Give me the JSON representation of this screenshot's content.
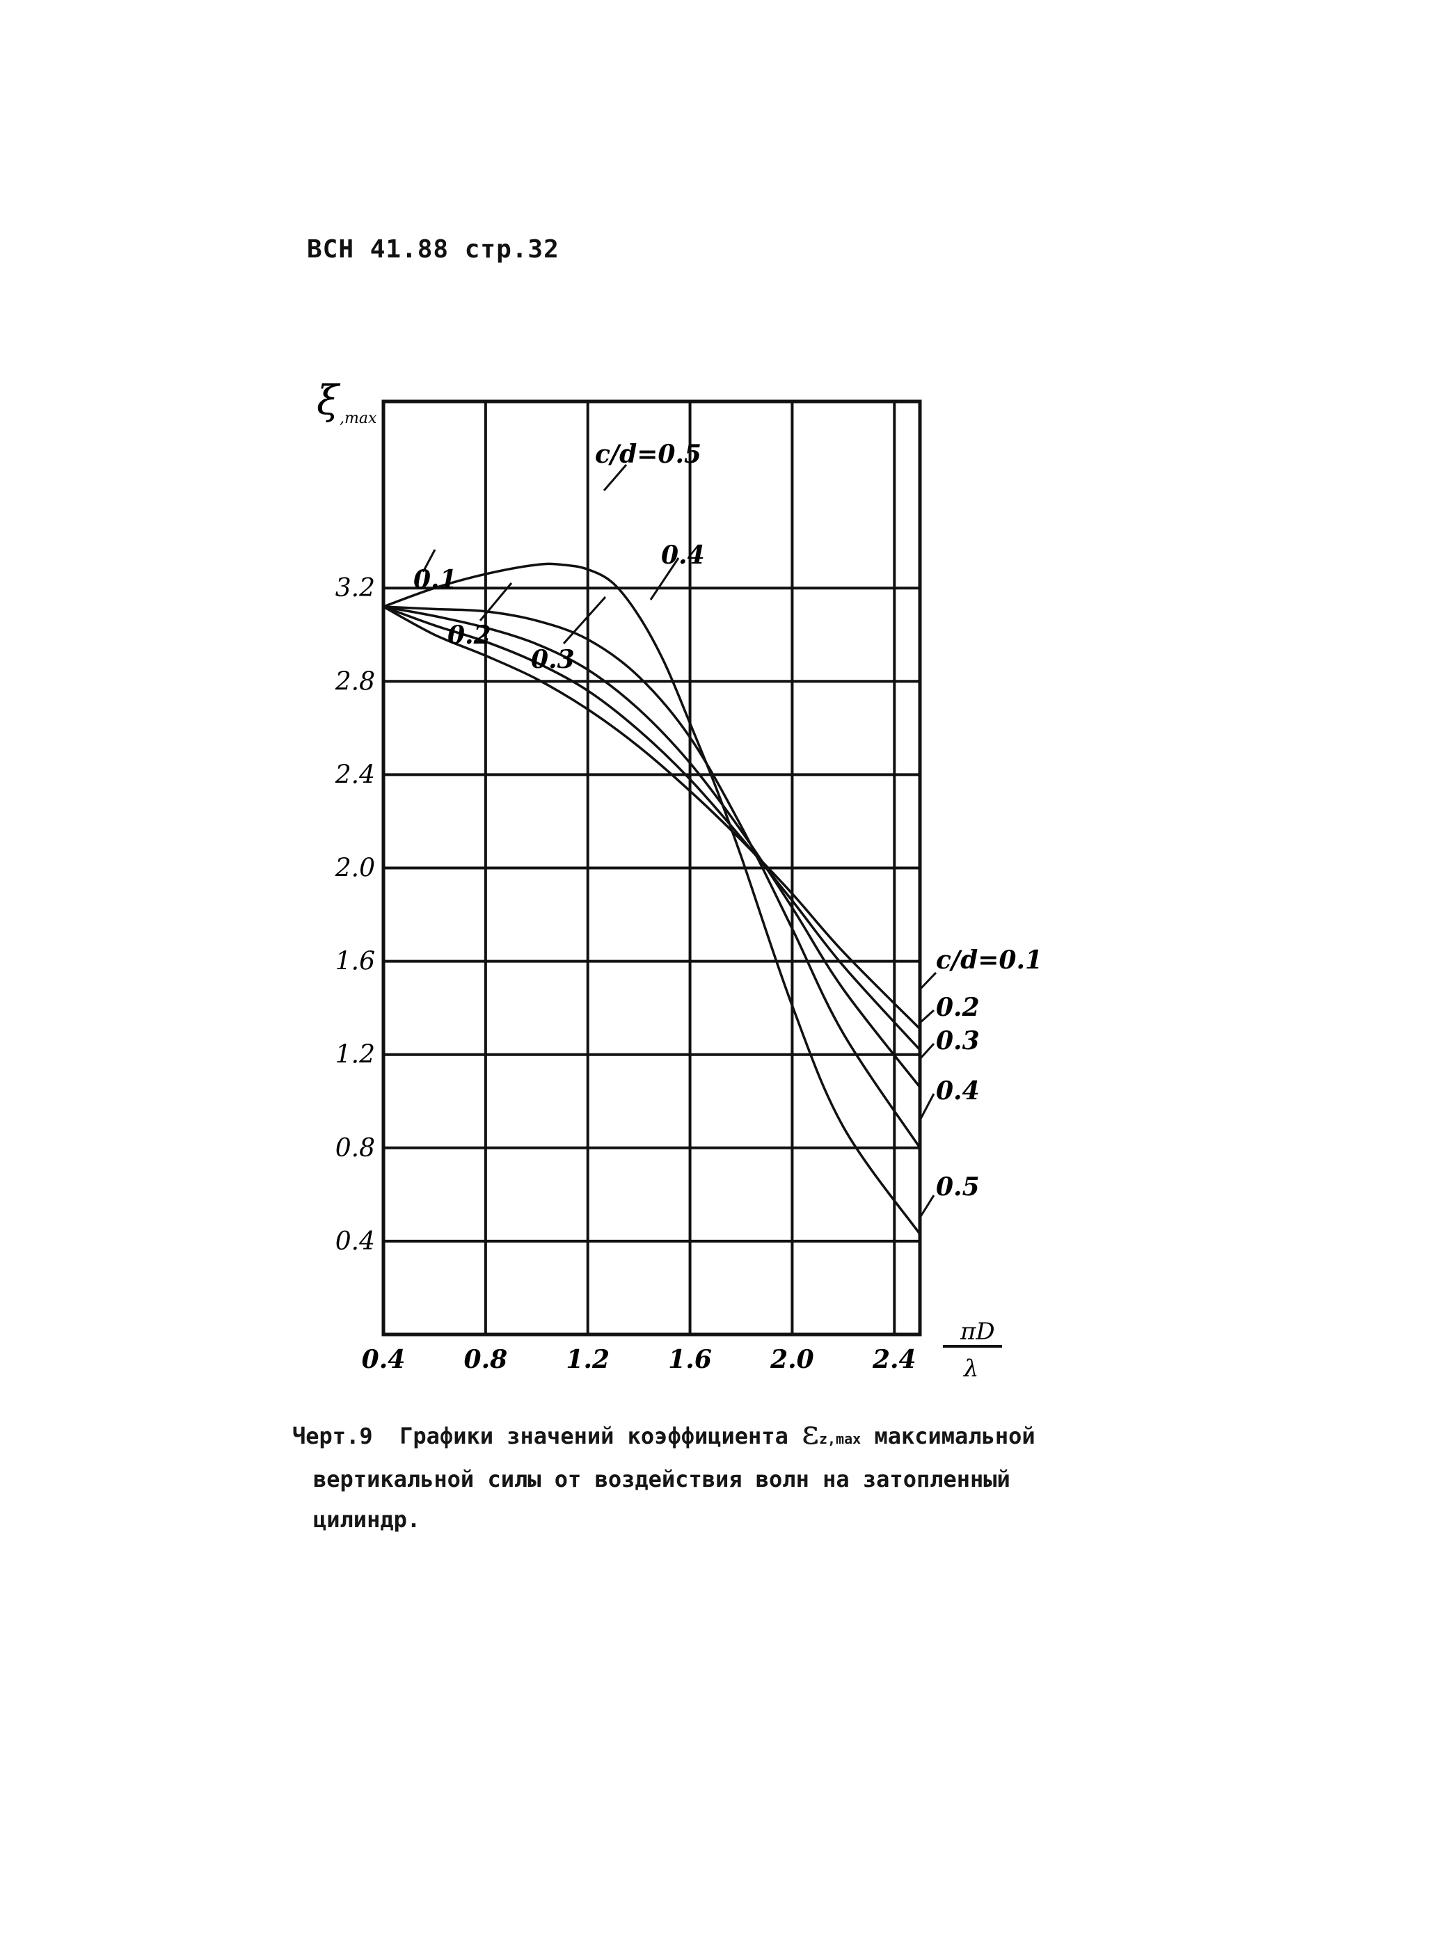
{
  "header": {
    "text": "ВСН 41.88 стр.32"
  },
  "chart_data": {
    "type": "line",
    "xlabel": {
      "num": "πD",
      "den": "λ"
    },
    "ylabel": {
      "sym": "ξ",
      "sub": ",max"
    },
    "xlim": [
      0.4,
      2.5
    ],
    "ylim": [
      0.0,
      4.0
    ],
    "xticks": [
      0.4,
      0.8,
      1.2,
      1.6,
      2.0,
      2.4
    ],
    "xtick_labels": [
      "0.4",
      "0.8",
      "1.2",
      "1.6",
      "2.0",
      "2.4"
    ],
    "yticks": [
      0.4,
      0.8,
      1.2,
      1.6,
      2.0,
      2.4,
      2.8,
      3.2
    ],
    "ytick_labels": [
      "0.4",
      "0.8",
      "1.2",
      "1.6",
      "2.0",
      "2.4",
      "2.8",
      "3.2"
    ],
    "grid": true,
    "series": [
      {
        "name": "c/d=0.1",
        "x": [
          0.4,
          0.6,
          0.8,
          1.0,
          1.2,
          1.4,
          1.6,
          1.8,
          2.0,
          2.2,
          2.5
        ],
        "y": [
          3.12,
          3.0,
          2.91,
          2.81,
          2.68,
          2.52,
          2.33,
          2.12,
          1.89,
          1.64,
          1.31
        ]
      },
      {
        "name": "c/d=0.2",
        "x": [
          0.4,
          0.6,
          0.8,
          1.0,
          1.2,
          1.4,
          1.6,
          1.8,
          2.0,
          2.2,
          2.5
        ],
        "y": [
          3.12,
          3.04,
          2.97,
          2.88,
          2.76,
          2.59,
          2.38,
          2.13,
          1.86,
          1.58,
          1.22
        ]
      },
      {
        "name": "c/d=0.3",
        "x": [
          0.4,
          0.6,
          0.8,
          1.0,
          1.2,
          1.4,
          1.6,
          1.8,
          2.0,
          2.2,
          2.5
        ],
        "y": [
          3.12,
          3.08,
          3.03,
          2.96,
          2.85,
          2.68,
          2.45,
          2.16,
          1.83,
          1.48,
          1.06
        ]
      },
      {
        "name": "c/d=0.4",
        "x": [
          0.4,
          0.6,
          0.8,
          1.0,
          1.2,
          1.4,
          1.6,
          1.8,
          2.0,
          2.2,
          2.5
        ],
        "y": [
          3.12,
          3.11,
          3.1,
          3.06,
          2.98,
          2.82,
          2.56,
          2.18,
          1.74,
          1.29,
          0.8
        ]
      },
      {
        "name": "c/d=0.5",
        "x": [
          0.4,
          0.6,
          0.8,
          1.0,
          1.1,
          1.2,
          1.3,
          1.4,
          1.5,
          1.6,
          1.7,
          1.8,
          2.0,
          2.2,
          2.5
        ],
        "y": [
          3.12,
          3.2,
          3.26,
          3.3,
          3.3,
          3.28,
          3.22,
          3.08,
          2.88,
          2.62,
          2.35,
          2.05,
          1.41,
          0.89,
          0.43
        ]
      }
    ],
    "annotations": {
      "left": [
        {
          "series": 0,
          "text": "0.1"
        },
        {
          "series": 1,
          "text": "0.2"
        },
        {
          "series": 2,
          "text": "0.3"
        },
        {
          "series": 3,
          "text": "0.4"
        },
        {
          "series": 4,
          "text": "c/d=0.5"
        }
      ],
      "right": [
        {
          "series": 0,
          "text": "c/d=0.1"
        },
        {
          "series": 1,
          "text": "0.2"
        },
        {
          "series": 2,
          "text": "0.3"
        },
        {
          "series": 3,
          "text": "0.4"
        },
        {
          "series": 4,
          "text": "0.5"
        }
      ]
    }
  },
  "caption": {
    "prefix": "Черт.9",
    "line1_a": "Графики значений коэффициента",
    "symbol": "ε",
    "symbol_sub": "z,max",
    "line1_b": "максимальной",
    "line2": "вертикальной силы от воздействия волн на затопленный",
    "line3": "цилиндр."
  }
}
